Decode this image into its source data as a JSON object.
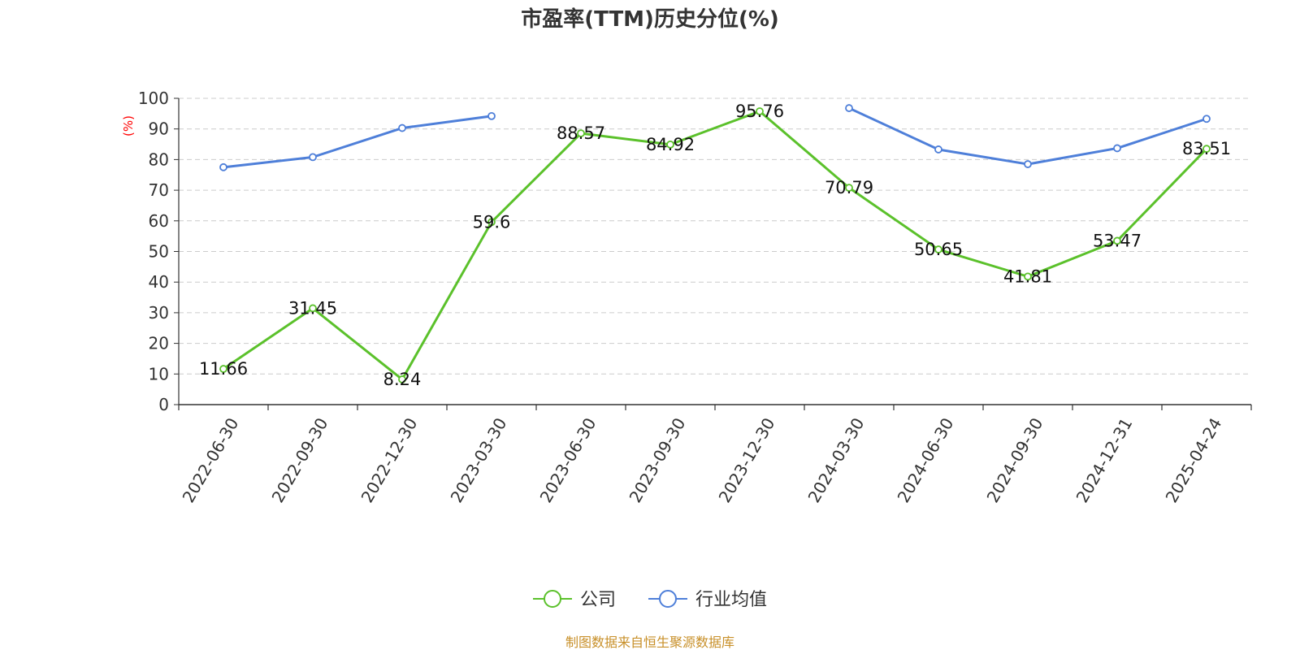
{
  "chart_data": {
    "type": "line",
    "title": "市盈率(TTM)历史分位(%)",
    "ylabel": "(%)",
    "ylim": [
      0,
      100
    ],
    "yticks": [
      0,
      10,
      20,
      30,
      40,
      50,
      60,
      70,
      80,
      90,
      100
    ],
    "grid": true,
    "legend_placement": "bottom-center",
    "categories": [
      "2022-06-30",
      "2022-09-30",
      "2022-12-30",
      "2023-03-30",
      "2023-06-30",
      "2023-09-30",
      "2023-12-30",
      "2024-03-30",
      "2024-06-30",
      "2024-09-30",
      "2024-12-31",
      "2025-04-24"
    ],
    "series": [
      {
        "name": "公司",
        "color": "#5bc12b",
        "show_labels": true,
        "values": [
          11.66,
          31.45,
          8.24,
          59.6,
          88.57,
          84.92,
          95.76,
          70.79,
          50.65,
          41.81,
          53.47,
          83.51
        ]
      },
      {
        "name": "行业均值",
        "color": "#4e7fd9",
        "show_labels": false,
        "values": [
          77.5,
          80.8,
          90.3,
          94.2,
          null,
          null,
          null,
          96.8,
          83.3,
          78.5,
          83.7,
          93.3
        ]
      }
    ]
  },
  "source_text": "制图数据来自恒生聚源数据库",
  "colors": {
    "unit_label": "#ff0000",
    "source_text": "#c8902a",
    "axis": "#333333",
    "grid": "#cccccc"
  }
}
